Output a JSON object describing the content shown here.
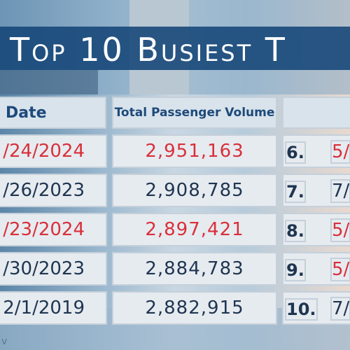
{
  "header": {
    "title": "Top 10 Busiest T"
  },
  "table": {
    "columns": [
      "Date",
      "Total Passenger Volume"
    ],
    "rows": [
      {
        "date": "/24/2024",
        "volume": "2,951,163",
        "highlight": true
      },
      {
        "date": "/26/2023",
        "volume": "2,908,785",
        "highlight": false
      },
      {
        "date": "/23/2024",
        "volume": "2,897,421",
        "highlight": true
      },
      {
        "date": "/30/2023",
        "volume": "2,884,783",
        "highlight": false
      },
      {
        "date": "2/1/2019",
        "volume": "2,882,915",
        "highlight": false
      }
    ],
    "right_rows": [
      {
        "rank": "6.",
        "date": "5/",
        "highlight": true
      },
      {
        "rank": "7.",
        "date": "7/",
        "highlight": false
      },
      {
        "rank": "8.",
        "date": "5/",
        "highlight": true
      },
      {
        "rank": "9.",
        "date": "5/",
        "highlight": true
      },
      {
        "rank": "10.",
        "date": "7/",
        "highlight": false
      }
    ]
  },
  "footer": {
    "text": "v"
  }
}
